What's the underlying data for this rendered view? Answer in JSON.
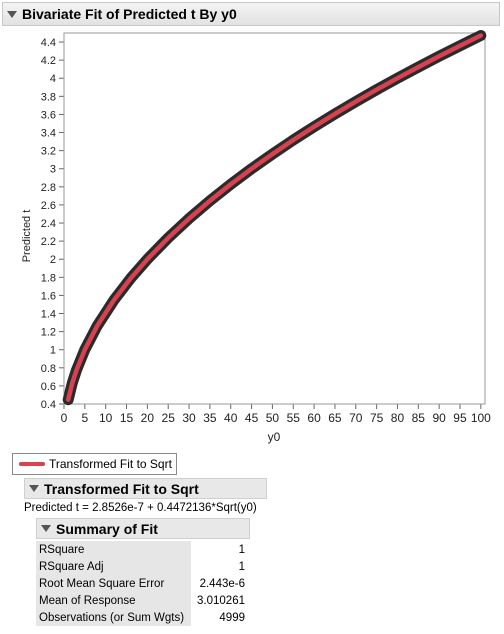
{
  "report": {
    "title": "Bivariate Fit of Predicted t By y0"
  },
  "legend": {
    "label": "Transformed Fit to Sqrt",
    "color": "#d8414f"
  },
  "fit": {
    "title": "Transformed Fit to Sqrt",
    "equation": "Predicted t = 2.8526e-7 + 0.4472136*Sqrt(y0)"
  },
  "summary": {
    "title": "Summary of Fit",
    "rows": [
      {
        "label": "RSquare",
        "value": "1"
      },
      {
        "label": "RSquare Adj",
        "value": "1"
      },
      {
        "label": "Root Mean Square Error",
        "value": "2.443e-6"
      },
      {
        "label": "Mean of Response",
        "value": "3.010261"
      },
      {
        "label": "Observations (or Sum Wgts)",
        "value": "4999"
      }
    ]
  },
  "chart_data": {
    "type": "line",
    "xlabel": "y0",
    "ylabel": "Predicted t",
    "xlim": [
      0,
      101
    ],
    "ylim": [
      0.4,
      4.5
    ],
    "xticks": [
      "0",
      "5",
      "10",
      "15",
      "20",
      "25",
      "30",
      "35",
      "40",
      "45",
      "50",
      "55",
      "60",
      "65",
      "70",
      "75",
      "80",
      "85",
      "90",
      "95",
      "100"
    ],
    "yticks": [
      "0.4",
      "0.6",
      "0.8",
      "1",
      "1.2",
      "1.4",
      "1.6",
      "1.8",
      "2",
      "2.2",
      "2.4",
      "2.6",
      "2.8",
      "3",
      "3.2",
      "3.4",
      "3.6",
      "3.8",
      "4",
      "4.2",
      "4.4"
    ],
    "series": [
      {
        "name": "Transformed Fit to Sqrt",
        "x": [
          1,
          2,
          3,
          5,
          8,
          12,
          16,
          20,
          25,
          30,
          35,
          40,
          45,
          50,
          55,
          60,
          65,
          70,
          75,
          80,
          85,
          90,
          95,
          100
        ],
        "y": [
          0.447,
          0.632,
          0.775,
          1.0,
          1.265,
          1.549,
          1.789,
          2.0,
          2.236,
          2.449,
          2.646,
          2.828,
          3.0,
          3.162,
          3.317,
          3.464,
          3.606,
          3.742,
          3.873,
          4.0,
          4.123,
          4.243,
          4.359,
          4.472
        ],
        "color": "#d8414f"
      }
    ],
    "grid": false
  }
}
